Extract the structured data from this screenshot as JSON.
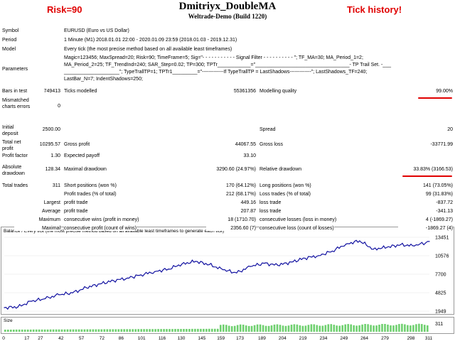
{
  "header": {
    "title": "Dmitriyx_DoubleMA",
    "subtitle": "Weltrade-Demo (Build 1220)",
    "note_left": "Risk=90",
    "note_right": "Tick history!"
  },
  "info": {
    "symbol_label": "Symbol",
    "symbol_value": "EURUSD (Euro vs US Dollar)",
    "period_label": "Period",
    "period_value": "1 Minute (M1) 2018.01.01 22:00 - 2020.01.09 23:59 (2018.01.03 - 2019.12.31)",
    "model_label": "Model",
    "model_value": "Every tick (the most precise method based on all available least timeframes)",
    "parameters_label": "Parameters",
    "parameters_lines": [
      "Magic=123456; MaxSpread=20; Risk=90; TimeFrame=5; Sig=\"- - - - - - - - - - - Signal Filter - - - - - - - - - - \"; TF_MA=30; MA_Period_1=2;",
      "MA_Period_2=25; TF_TrendInd=240; SAR_Step=0.02; TP=300; TPTr____________=\"__________________________________- TP Trail Set. -___",
      "____________________\"; TypeTrallTP=1; TPTr1_________=\"-------------If TypeTrallTP = LastShadows-------------\"; LastShadows_TF=240;",
      "LastBar_N=7; IndentShadows=250;"
    ]
  },
  "stats": {
    "bars_label": "Bars in test",
    "bars_value": "749413",
    "ticks_label": "Ticks modelled",
    "ticks_value": "55361356",
    "quality_label": "Modelling quality",
    "quality_value": "99.00%",
    "mismatch_label": "Mismatched charts errors",
    "mismatch_value": "0",
    "deposit_label": "Initial deposit",
    "deposit_value": "2500.00",
    "spread_label": "Spread",
    "spread_value": "20",
    "netprofit_label": "Total net profit",
    "netprofit_value": "10295.57",
    "grossprofit_label": "Gross profit",
    "grossprofit_value": "44067.55",
    "grossloss_label": "Gross loss",
    "grossloss_value": "-33771.99",
    "pf_label": "Profit factor",
    "pf_value": "1.30",
    "payoff_label": "Expected payoff",
    "payoff_value": "33.10",
    "absdd_label": "Absolute drawdown",
    "absdd_value": "128.34",
    "maxdd_label": "Maximal drawdown",
    "maxdd_value": "3290.60 (24.97%)",
    "reldd_label": "Relative drawdown",
    "reldd_value": "33.83% (3166.53)",
    "trades_label": "Total trades",
    "trades_value": "311",
    "short_label": "Short positions (won %)",
    "short_value": "170 (64.12%)",
    "long_label": "Long positions (won %)",
    "long_value": "141 (73.05%)",
    "ptrades_label": "Profit trades (% of total)",
    "ptrades_value": "212 (68.17%)",
    "ltrades_label": "Loss trades (% of total)",
    "ltrades_value": "99 (31.83%)",
    "largest_label": "Largest",
    "average_label": "Average",
    "maximum_label": "Maximum",
    "maximal_label": "Maximal",
    "lpt_label": "profit trade",
    "lpt_value": "449.16",
    "llt_label": "loss trade",
    "llt_value": "-837.72",
    "apt_label": "profit trade",
    "apt_value": "207.87",
    "alt_label": "loss trade",
    "alt_value": "-341.13",
    "mcw_label": "consecutive wins (profit in money)",
    "mcw_value": "18 (1710.70)",
    "mcl_label": "consecutive losses (loss in money)",
    "mcl_value": "4 (-1869.27)",
    "mcp_label": "consecutive profit (count of wins)",
    "mcp_value": "2356.60 (7)",
    "mcloss_label": "consecutive loss (count of losses)",
    "mcloss_value": "-1869.27 (4)",
    "acw_label": "consecutive wins",
    "acw_value": "3",
    "acl_label": "consecutive losses",
    "acl_value": "1"
  },
  "chart_data": {
    "type": "line",
    "title": "Balance / Every tick (the most precise method based on all available least timeframes to generate each tick)",
    "ylim": [
      1949,
      13451
    ],
    "yticks": [
      "13451",
      "10576",
      "7700",
      "4825",
      "1949"
    ],
    "xticks": [
      "0",
      "17",
      "27",
      "42",
      "57",
      "72",
      "86",
      "101",
      "116",
      "130",
      "145",
      "159",
      "173",
      "189",
      "204",
      "219",
      "234",
      "249",
      "264",
      "279",
      "298",
      "311"
    ],
    "x": [
      0,
      10,
      20,
      30,
      40,
      50,
      60,
      70,
      80,
      90,
      100,
      110,
      120,
      130,
      140,
      150,
      160,
      170,
      180,
      190,
      200,
      210,
      220,
      230,
      240,
      250,
      260,
      270,
      280,
      290,
      300,
      311
    ],
    "values": [
      2500,
      2600,
      3500,
      3900,
      4500,
      4800,
      5600,
      6200,
      6700,
      7100,
      7600,
      8100,
      8500,
      9300,
      9700,
      9200,
      8400,
      7900,
      8900,
      9400,
      9100,
      9600,
      10200,
      10600,
      11300,
      12400,
      12900,
      11600,
      11900,
      12300,
      12100,
      12800
    ],
    "size_label": "Size",
    "size_max_label": "311"
  }
}
